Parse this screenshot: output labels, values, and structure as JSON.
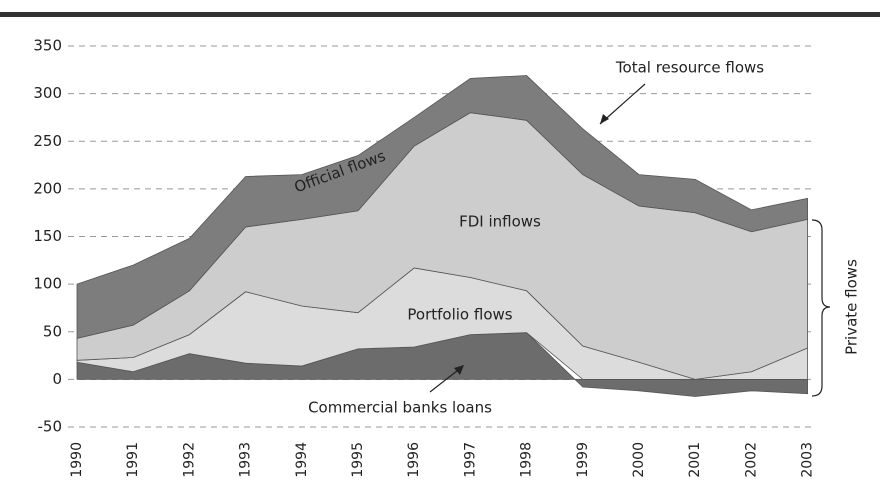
{
  "chart_data": {
    "type": "stacked_area",
    "categories": [
      "1990",
      "1991",
      "1992",
      "1993",
      "1994",
      "1995",
      "1996",
      "1997",
      "1998",
      "1999",
      "2000",
      "2001",
      "2002",
      "2003"
    ],
    "series": [
      {
        "name": "Commercial banks loans",
        "color": "#6c6c6c",
        "values": [
          18,
          8,
          27,
          17,
          14,
          32,
          34,
          47,
          49,
          -8,
          -12,
          -18,
          -12,
          -15
        ]
      },
      {
        "name": "Portfolio flows",
        "color": "#dcdcdc",
        "values": [
          2,
          15,
          20,
          75,
          63,
          38,
          83,
          60,
          44,
          35,
          18,
          0,
          8,
          33
        ]
      },
      {
        "name": "FDI inflows",
        "color": "#cdcdcd",
        "values": [
          23,
          34,
          46,
          68,
          91,
          107,
          128,
          173,
          179,
          180,
          164,
          175,
          147,
          135
        ]
      },
      {
        "name": "Official flows",
        "color": "#7d7d7d",
        "values": [
          57,
          63,
          55,
          53,
          47,
          58,
          30,
          36,
          47,
          48,
          33,
          35,
          23,
          22
        ]
      }
    ],
    "annotations": [
      "Total resource flows",
      "Private flows"
    ],
    "ylim": [
      -50,
      350
    ],
    "yticks": [
      -50,
      0,
      50,
      100,
      150,
      200,
      250,
      300,
      350
    ],
    "grid": true
  }
}
